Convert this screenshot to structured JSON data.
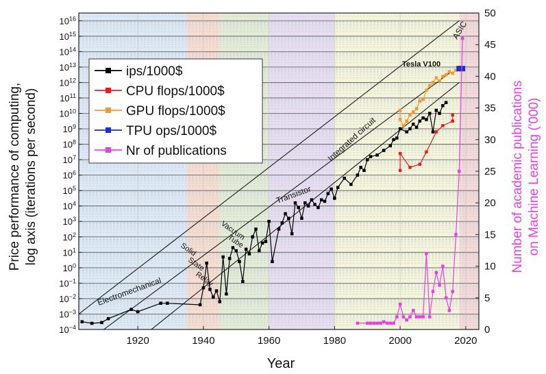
{
  "chart_data": {
    "type": "scatter",
    "xlabel": "Year",
    "ylabel_left": "Price performance of computing, log axis (iterations per second)",
    "ylabel_left_lines": [
      "Price performance of computing,",
      "log axis (iterations per second)"
    ],
    "ylabel_right": "Number of academic publications on Machine Learning ('000)",
    "ylabel_right_lines": [
      "Number of academic publications",
      "on Machine Learning ('000)"
    ],
    "xlim": [
      1902,
      2024
    ],
    "ylim_left_log10": [
      -4,
      16.5
    ],
    "ylim_right": [
      0,
      50
    ],
    "x_ticks": [
      1920,
      1940,
      1960,
      1980,
      2000,
      2020
    ],
    "right_ticks": [
      0,
      5,
      10,
      15,
      20,
      25,
      30,
      35,
      40,
      45,
      50
    ],
    "left_ticks_exponents": [
      -4,
      -3,
      -2,
      -1,
      0,
      1,
      2,
      3,
      4,
      5,
      6,
      7,
      8,
      9,
      10,
      11,
      12,
      13,
      14,
      15,
      16
    ],
    "grid": true,
    "legend_position": "upper-left",
    "eras": [
      {
        "label": "Electromechanical",
        "start": 1902,
        "end": 1935,
        "color": "#dce8f3"
      },
      {
        "label": "Solid State Relay",
        "start": 1935,
        "end": 1945,
        "color": "#f6dccf"
      },
      {
        "label": "Vacuum Tube",
        "start": 1945,
        "end": 1960,
        "color": "#e3ebd6"
      },
      {
        "label": "Transistor",
        "start": 1960,
        "end": 1980,
        "color": "#e6def0"
      },
      {
        "label": "Integrated circuit",
        "start": 1980,
        "end": 2018,
        "color": "#f4f4da"
      },
      {
        "label": "ASIC",
        "start": 2018,
        "end": 2024,
        "color": "#f4d9d9"
      }
    ],
    "era_text": {
      "electromechanical": "Electromechanical",
      "solid_state_relay": [
        "Solid",
        "State",
        "Relay"
      ],
      "vacuum_tube": [
        "Vacuum",
        "Tube"
      ],
      "transistor": "Transistor",
      "integrated_circuit": "Integrated circuit",
      "asic": "ASIC"
    },
    "annotation_tesla": "Tesla V100",
    "series": [
      {
        "name": "ips/1000$",
        "color": "#000000",
        "axis": "left_log10",
        "points": [
          [
            1903,
            -3.5
          ],
          [
            1906,
            -3.6
          ],
          [
            1909,
            -3.55
          ],
          [
            1911,
            -3.3
          ],
          [
            1918,
            -2.7
          ],
          [
            1920,
            -2.85
          ],
          [
            1927,
            -2.3
          ],
          [
            1929,
            -2.3
          ],
          [
            1939,
            -2.4
          ],
          [
            1940,
            -1.3
          ],
          [
            1941,
            0.3
          ],
          [
            1942,
            -1.4
          ],
          [
            1943,
            -1.9
          ],
          [
            1944,
            -1.5
          ],
          [
            1945,
            -2.2
          ],
          [
            1946,
            0.7
          ],
          [
            1947,
            -1.7
          ],
          [
            1948,
            0.6
          ],
          [
            1949,
            1.3
          ],
          [
            1950,
            1.1
          ],
          [
            1951,
            0.4
          ],
          [
            1952,
            -0.9
          ],
          [
            1953,
            1.2
          ],
          [
            1954,
            0.9
          ],
          [
            1955,
            2.0
          ],
          [
            1956,
            2.5
          ],
          [
            1957,
            1.1
          ],
          [
            1958,
            1.6
          ],
          [
            1959,
            1.7
          ],
          [
            1960,
            3.0
          ],
          [
            1961,
            0.4
          ],
          [
            1963,
            2.5
          ],
          [
            1964,
            2.9
          ],
          [
            1965,
            3.5
          ],
          [
            1966,
            3.2
          ],
          [
            1967,
            2.2
          ],
          [
            1968,
            4.2
          ],
          [
            1969,
            3.9
          ],
          [
            1970,
            3.2
          ],
          [
            1971,
            4.2
          ],
          [
            1972,
            4.0
          ],
          [
            1973,
            4.4
          ],
          [
            1974,
            4.1
          ],
          [
            1975,
            3.9
          ],
          [
            1976,
            4.4
          ],
          [
            1977,
            4.3
          ],
          [
            1978,
            4.8
          ],
          [
            1979,
            5.1
          ],
          [
            1980,
            4.5
          ],
          [
            1981,
            5.2
          ],
          [
            1983,
            5.8
          ],
          [
            1985,
            5.4
          ],
          [
            1987,
            6.0
          ],
          [
            1988,
            6.5
          ],
          [
            1989,
            6.3
          ],
          [
            1990,
            7.0
          ],
          [
            1991,
            7.2
          ],
          [
            1993,
            7.3
          ],
          [
            1995,
            7.6
          ],
          [
            1997,
            7.9
          ],
          [
            1998,
            8.3
          ],
          [
            1999,
            8.4
          ],
          [
            2000,
            9.0
          ],
          [
            2002,
            8.8
          ],
          [
            2003,
            9.0
          ],
          [
            2004,
            9.3
          ],
          [
            2005,
            9.1
          ],
          [
            2006,
            9.5
          ],
          [
            2007,
            9.7
          ],
          [
            2008,
            9.6
          ],
          [
            2009,
            10.0
          ],
          [
            2010,
            8.8
          ],
          [
            2011,
            10.2
          ],
          [
            2012,
            10.0
          ],
          [
            2013,
            10.5
          ],
          [
            2014,
            10.7
          ]
        ]
      },
      {
        "name": "CPU flops/1000$",
        "color": "#e61e1e",
        "axis": "left_log10",
        "points": [
          [
            2000,
            6.3
          ],
          [
            2000,
            7.4
          ],
          [
            2003,
            6.5
          ],
          [
            2006,
            6.7
          ],
          [
            2008,
            7.5
          ],
          [
            2011,
            8.8
          ],
          [
            2013,
            9.2
          ],
          [
            2016,
            9.5
          ],
          [
            2016,
            9.9
          ]
        ]
      },
      {
        "name": "GPU flops/1000$",
        "color": "#f29a2e",
        "axis": "left_log10",
        "points": [
          [
            2000,
            10.2
          ],
          [
            2000,
            9.6
          ],
          [
            2001,
            9.2
          ],
          [
            2002,
            9.5
          ],
          [
            2003,
            9.9
          ],
          [
            2004,
            10.1
          ],
          [
            2005,
            10.3
          ],
          [
            2006,
            10.8
          ],
          [
            2007,
            10.9
          ],
          [
            2008,
            11.5
          ],
          [
            2009,
            11.8
          ],
          [
            2010,
            12.0
          ],
          [
            2011,
            12.3
          ],
          [
            2012,
            12.1
          ],
          [
            2013,
            12.4
          ],
          [
            2014,
            12.5
          ],
          [
            2015,
            12.7
          ],
          [
            2016,
            12.6
          ],
          [
            2017,
            12.8
          ]
        ]
      },
      {
        "name": "TPU ops/1000$",
        "color": "#1a2fd1",
        "axis": "left_log10",
        "points": [
          [
            2018,
            12.9
          ],
          [
            2019,
            12.9
          ]
        ]
      },
      {
        "name": "Nr of publications",
        "color": "#e83ee8",
        "axis": "right",
        "points": [
          [
            1987,
            1
          ],
          [
            1990,
            1
          ],
          [
            1991,
            1
          ],
          [
            1992,
            1
          ],
          [
            1993,
            1
          ],
          [
            1994,
            1
          ],
          [
            1995,
            1.2
          ],
          [
            1996,
            1
          ],
          [
            1997,
            1
          ],
          [
            1998,
            1
          ],
          [
            1999,
            2
          ],
          [
            2000,
            4
          ],
          [
            2001,
            2
          ],
          [
            2002,
            1.5
          ],
          [
            2003,
            2
          ],
          [
            2004,
            3
          ],
          [
            2005,
            2
          ],
          [
            2006,
            2
          ],
          [
            2007,
            2
          ],
          [
            2008,
            12
          ],
          [
            2009,
            2
          ],
          [
            2010,
            6
          ],
          [
            2011,
            9
          ],
          [
            2012,
            7
          ],
          [
            2013,
            10
          ],
          [
            2014,
            5
          ],
          [
            2015,
            3
          ],
          [
            2016,
            6
          ],
          [
            2017,
            15
          ],
          [
            2018,
            25
          ],
          [
            2019,
            46
          ]
        ]
      }
    ],
    "trend_lines": [
      {
        "from": [
          1902,
          -3.0
        ],
        "to": [
          2018,
          16
        ]
      },
      {
        "from": [
          1902,
          -5.2
        ],
        "to": [
          2015,
          12.6
        ]
      },
      {
        "from": [
          1903,
          -7.6
        ],
        "to": [
          2018,
          12.0
        ]
      }
    ]
  }
}
